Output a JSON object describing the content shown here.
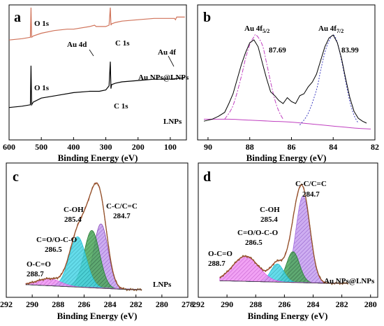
{
  "chart_data": [
    {
      "panel": "a",
      "type": "line",
      "xlabel": "Binding Energy (eV)",
      "ylabel": "",
      "xlim": [
        600,
        50
      ],
      "x_ticks": [
        "600",
        "500",
        "400",
        "300",
        "200",
        "100"
      ],
      "series": [
        {
          "name": "Au NPs@LNPs",
          "color": "#d0735a",
          "x": [
            600,
            560,
            534,
            532,
            530,
            525,
            500,
            460,
            420,
            400,
            350,
            335,
            330,
            300,
            290,
            286,
            284,
            282,
            270,
            250,
            200,
            150,
            100,
            90,
            87,
            84,
            80,
            60,
            55
          ],
          "y": [
            74,
            75,
            76,
            98,
            76,
            77,
            79,
            81,
            82,
            82,
            84,
            85,
            84,
            84,
            85,
            98,
            85,
            86,
            87,
            88,
            89,
            90,
            90,
            90,
            90,
            89,
            91,
            91,
            91
          ]
        },
        {
          "name": "LNPs",
          "color": "#000000",
          "x": [
            600,
            560,
            534,
            532,
            530,
            525,
            500,
            450,
            400,
            350,
            320,
            300,
            290,
            286,
            284,
            282,
            270,
            250,
            200,
            150,
            100,
            55
          ],
          "y": [
            24,
            25,
            26,
            55,
            26,
            28,
            31,
            33,
            35,
            36,
            36,
            37,
            40,
            58,
            38,
            41,
            42,
            43,
            44,
            45,
            45,
            46
          ]
        }
      ],
      "annotations": [
        "O 1s",
        "Au 4d",
        "C 1s",
        "Au 4f",
        "Au NPs@LNPs",
        "O 1s",
        "C 1s",
        "LNPs"
      ]
    },
    {
      "panel": "b",
      "type": "line",
      "xlabel": "Binding Energy (eV)",
      "xlim": [
        90.5,
        82
      ],
      "x_ticks": [
        "90",
        "88",
        "86",
        "84",
        "82"
      ],
      "series": [
        {
          "name": "raw",
          "color": "#000000",
          "x": [
            90.2,
            89.8,
            89.5,
            89.2,
            89.0,
            88.8,
            88.6,
            88.4,
            88.2,
            88.0,
            87.8,
            87.6,
            87.4,
            87.2,
            87.0,
            86.8,
            86.6,
            86.4,
            86.2,
            86.0,
            85.8,
            85.6,
            85.4,
            85.2,
            85.0,
            84.8,
            84.6,
            84.4,
            84.2,
            84.0,
            83.8,
            83.6,
            83.4,
            83.2,
            83.0,
            82.8,
            82.6,
            82.4
          ],
          "y": [
            12,
            14,
            17,
            21,
            30,
            40,
            55,
            70,
            82,
            92,
            95,
            88,
            72,
            56,
            42,
            38,
            33,
            30,
            36,
            32,
            30,
            38,
            40,
            47,
            52,
            60,
            74,
            88,
            97,
            100,
            92,
            76,
            55,
            36,
            22,
            15,
            12,
            10
          ]
        },
        {
          "name": "Au 4f5/2 fit",
          "color": "#c040c0",
          "x": [
            89.2,
            88.8,
            88.4,
            88.2,
            88.0,
            87.8,
            87.69,
            87.4,
            87.2,
            87.0,
            86.8,
            86.6,
            86.4
          ],
          "y": [
            14,
            28,
            58,
            76,
            90,
            98,
            100,
            90,
            72,
            52,
            34,
            22,
            14
          ]
        },
        {
          "name": "Au 4f7/2 fit",
          "color": "#4040c0",
          "x": [
            85.6,
            85.2,
            84.8,
            84.6,
            84.4,
            84.2,
            83.99,
            83.8,
            83.6,
            83.4,
            83.2,
            83.0,
            82.8
          ],
          "y": [
            8,
            20,
            44,
            64,
            82,
            94,
            100,
            92,
            74,
            52,
            32,
            18,
            10
          ]
        },
        {
          "name": "background",
          "color": "#c040c0",
          "x": [
            90.2,
            89.0,
            88.0,
            87.0,
            86.0,
            85.0,
            84.0,
            83.0,
            82.2
          ],
          "y": [
            14,
            14,
            13,
            12,
            11,
            9,
            7,
            5,
            4
          ]
        }
      ],
      "annotations": [
        "Au 4f",
        "5/2",
        "Au 4f",
        "7/2",
        "87.69",
        "83.99"
      ]
    },
    {
      "panel": "c",
      "type": "line",
      "xlabel": "Binding Energy (eV)",
      "xlim": [
        292,
        278
      ],
      "x_ticks": [
        "292",
        "290",
        "288",
        "286",
        "284",
        "282",
        "280",
        "278"
      ],
      "components": [
        {
          "label": "C-C/C=C",
          "center": 284.7,
          "color": "#8a4ab8"
        },
        {
          "label": "C-OH",
          "center": 285.4,
          "color": "#2e7d3a"
        },
        {
          "label": "C=O/O-C-O",
          "center": 286.5,
          "color": "#22c4d8"
        },
        {
          "label": "O-C=O",
          "center": 288.7,
          "color": "#d466e0"
        }
      ],
      "annotations": [
        "C-C/C=C",
        "284.7",
        "C-OH",
        "285.4",
        "C=O/O-C-O",
        "286.5",
        "O-C=O",
        "288.7",
        "LNPs"
      ]
    },
    {
      "panel": "d",
      "type": "line",
      "xlabel": "Binding Energy (eV)",
      "xlim": [
        292,
        279.5
      ],
      "x_ticks": [
        "292",
        "290",
        "288",
        "286",
        "284",
        "282",
        "280"
      ],
      "components": [
        {
          "label": "C-C/C=C",
          "center": 284.7,
          "color": "#a06ae0"
        },
        {
          "label": "C-OH",
          "center": 285.4,
          "color": "#2e7d3a"
        },
        {
          "label": "C=O/O-C-O",
          "center": 286.5,
          "color": "#22c4d8"
        },
        {
          "label": "O-C=O",
          "center": 288.7,
          "color": "#e05ae8"
        }
      ],
      "annotations": [
        "C-C/C=C",
        "284.7",
        "C-OH",
        "285.4",
        "C=O/O-C-O",
        "286.5",
        "O-C=O",
        "288.7",
        "Au NPs@LNPs"
      ]
    }
  ],
  "panel_letters": [
    "a",
    "b",
    "c",
    "d"
  ]
}
